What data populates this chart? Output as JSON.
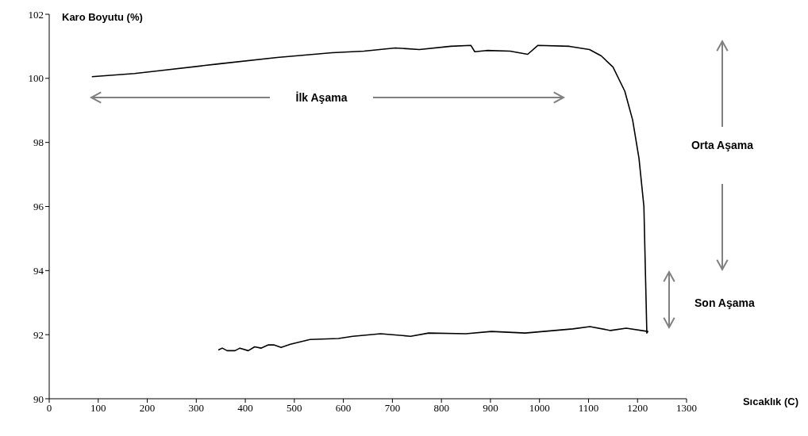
{
  "chart_data": {
    "type": "line",
    "xlabel": "Sıcaklık (C)",
    "ylabel": "Karo Boyutu (%)",
    "annotations": [
      "İlk Aşama",
      "Orta Aşama",
      "Son Aşama"
    ],
    "series": [
      {
        "color": "#000000",
        "x": [
          87,
          174,
          231,
          345,
          465,
          577,
          642,
          706,
          755,
          819,
          860,
          868,
          892,
          940,
          976,
          997,
          1061,
          1102,
          1126,
          1150,
          1174,
          1190,
          1203,
          1213,
          1216,
          1219,
          1221,
          1177,
          1145,
          1103,
          1068,
          971,
          902,
          850,
          774,
          737,
          676,
          619,
          590,
          532,
          492,
          473,
          458,
          447,
          432,
          419,
          406,
          389,
          379,
          363,
          353,
          345
        ],
        "values": [
          100.05,
          100.15,
          100.25,
          100.45,
          100.65,
          100.8,
          100.85,
          100.95,
          100.9,
          101.0,
          101.03,
          100.83,
          100.87,
          100.85,
          100.75,
          101.03,
          101.0,
          100.9,
          100.7,
          100.35,
          99.6,
          98.7,
          97.5,
          96.0,
          94.0,
          92.05,
          92.1,
          92.2,
          92.13,
          92.25,
          92.18,
          92.05,
          92.1,
          92.03,
          92.05,
          91.95,
          92.03,
          91.95,
          91.88,
          91.85,
          91.7,
          91.6,
          91.68,
          91.68,
          91.58,
          91.62,
          91.5,
          91.58,
          91.5,
          91.5,
          91.58,
          91.52
        ]
      }
    ],
    "xlim": [
      0,
      1300
    ],
    "xticks": [
      0,
      100,
      200,
      300,
      400,
      500,
      600,
      700,
      800,
      900,
      1000,
      1100,
      1200,
      1300
    ],
    "ylim": [
      90,
      102
    ],
    "yticks": [
      90,
      92,
      94,
      96,
      98,
      100,
      102
    ],
    "marker": "none",
    "line_style": "solid"
  }
}
